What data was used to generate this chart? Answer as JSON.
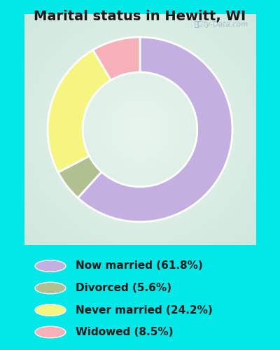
{
  "title": "Marital status in Hewitt, WI",
  "slices": [
    61.8,
    5.6,
    24.2,
    8.5
  ],
  "colors": [
    "#c4b0e0",
    "#b0c090",
    "#f5f580",
    "#f5b0b8"
  ],
  "labels": [
    "Now married (61.8%)",
    "Divorced (5.6%)",
    "Never married (24.2%)",
    "Widowed (8.5%)"
  ],
  "outer_bg": "#00e8e8",
  "chart_bg_center": "#e8f5ee",
  "chart_bg_edge": "#c8e8d8",
  "title_fontsize": 14,
  "legend_fontsize": 11,
  "watermark": "City-Data.com",
  "donut_width": 0.38
}
